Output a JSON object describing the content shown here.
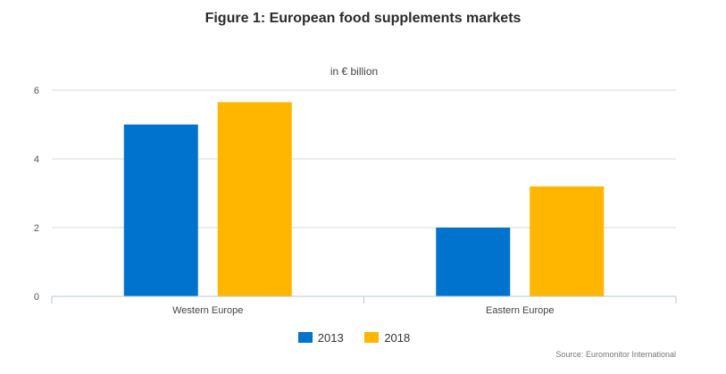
{
  "chart_data": {
    "type": "bar",
    "title": "Figure 1: European food supplements markets",
    "subtitle": "in € billion",
    "categories": [
      "Western Europe",
      "Eastern Europe"
    ],
    "series": [
      {
        "name": "2013",
        "values": [
          5.0,
          2.0
        ],
        "color": "#0073cf"
      },
      {
        "name": "2018",
        "values": [
          5.65,
          3.2
        ],
        "color": "#ffb600"
      }
    ],
    "ylim": [
      0,
      6
    ],
    "yticks": [
      "0",
      "2",
      "4",
      "6"
    ],
    "grid": true,
    "legend_position": "bottom-center",
    "source": "Source: Euromonitor International"
  }
}
